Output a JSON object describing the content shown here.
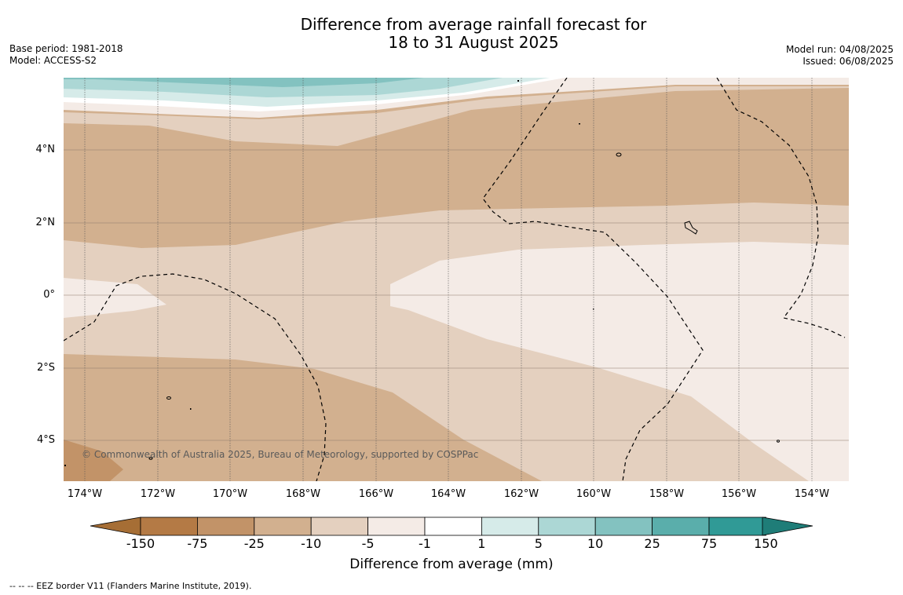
{
  "title": {
    "line1": "Difference from average rainfall forecast for",
    "line2": "18 to 31 August 2025"
  },
  "meta": {
    "base_period": "Base period: 1981-2018",
    "model": "Model: ACCESS-S2",
    "model_run": "Model run: 04/08/2025",
    "issued": "Issued: 06/08/2025"
  },
  "map": {
    "lat_ticks": [
      "4°N",
      "2°N",
      "0°",
      "2°S",
      "4°S"
    ],
    "lon_ticks": [
      "174°W",
      "172°W",
      "170°W",
      "168°W",
      "166°W",
      "164°W",
      "162°W",
      "160°W",
      "158°W",
      "156°W",
      "154°W"
    ],
    "copyright": "© Commonwealth of Australia 2025, Bureau of Meteorology, supported by COSPPac",
    "eez_note": "--  --  -- EEZ border V11 (Flanders Marine Institute, 2019)."
  },
  "colorbar": {
    "title": "Difference from average (mm)",
    "labels": [
      "-150",
      "-75",
      "-25",
      "-10",
      "-5",
      "-1",
      "1",
      "5",
      "10",
      "25",
      "75",
      "150"
    ],
    "colors": [
      "#a66e35",
      "#b47a45",
      "#c29368",
      "#d2b08f",
      "#e4d0bf",
      "#f4ebe6",
      "#ffffff",
      "#d6ebe9",
      "#acd7d5",
      "#83c2c0",
      "#5aaeab",
      "#309a96",
      "#1f7d78"
    ]
  }
}
